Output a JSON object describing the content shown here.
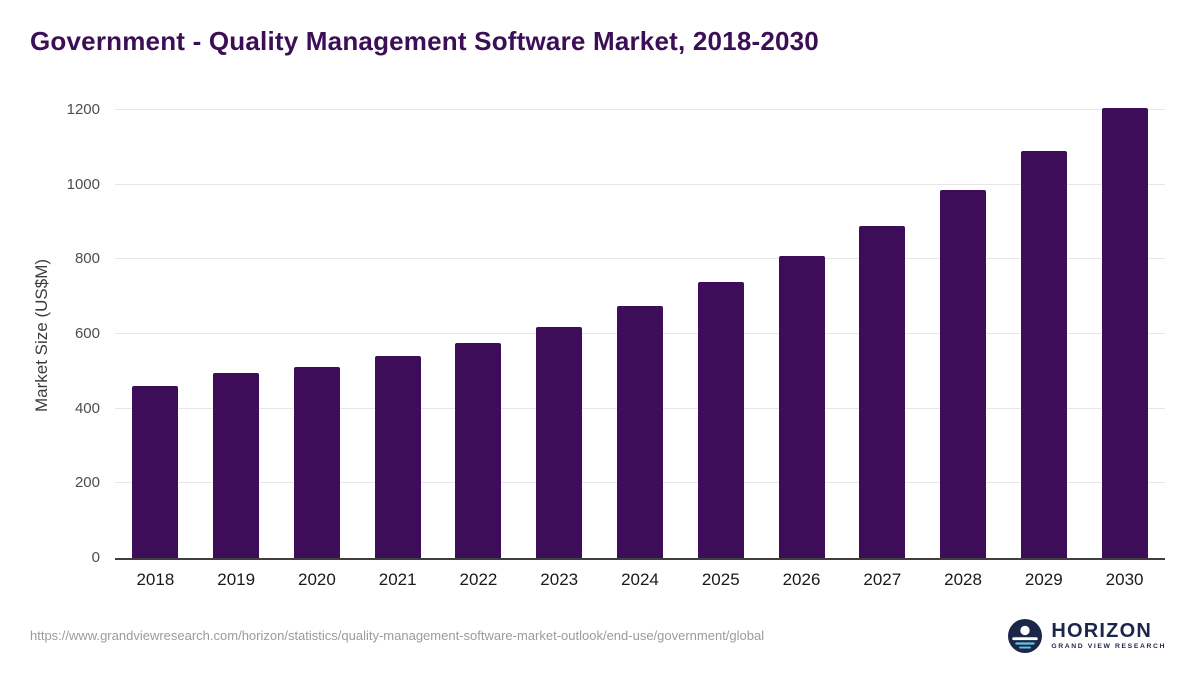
{
  "page": {
    "title": "Government - Quality Management Software Market, 2018-2030",
    "source_url": "https://www.grandviewresearch.com/horizon/statistics/quality-management-software-market-outlook/end-use/government/global"
  },
  "logo": {
    "name": "HORIZON",
    "subtitle": "GRAND VIEW RESEARCH"
  },
  "colors": {
    "bar": "#3e0d5a",
    "title": "#3b0e56",
    "brand_navy": "#1b2649",
    "gridline": "#e6e6e6",
    "axis_line": "#3f3f3f",
    "tick_label": "#4d4d4d",
    "source_text": "#9b9b9b"
  },
  "chart_data": {
    "type": "bar",
    "title": "Government - Quality Management Software Market, 2018-2030",
    "categories": [
      "2018",
      "2019",
      "2020",
      "2021",
      "2022",
      "2023",
      "2024",
      "2025",
      "2026",
      "2027",
      "2028",
      "2029",
      "2030"
    ],
    "values": [
      460,
      495,
      512,
      540,
      575,
      620,
      675,
      740,
      810,
      890,
      985,
      1090,
      1205
    ],
    "xlabel": "",
    "ylabel": "Market Size (US$M)",
    "ylim": [
      0,
      1200
    ],
    "yticks": [
      0,
      200,
      400,
      600,
      800,
      1000,
      1200
    ],
    "grid": true,
    "legend_position": "none"
  }
}
